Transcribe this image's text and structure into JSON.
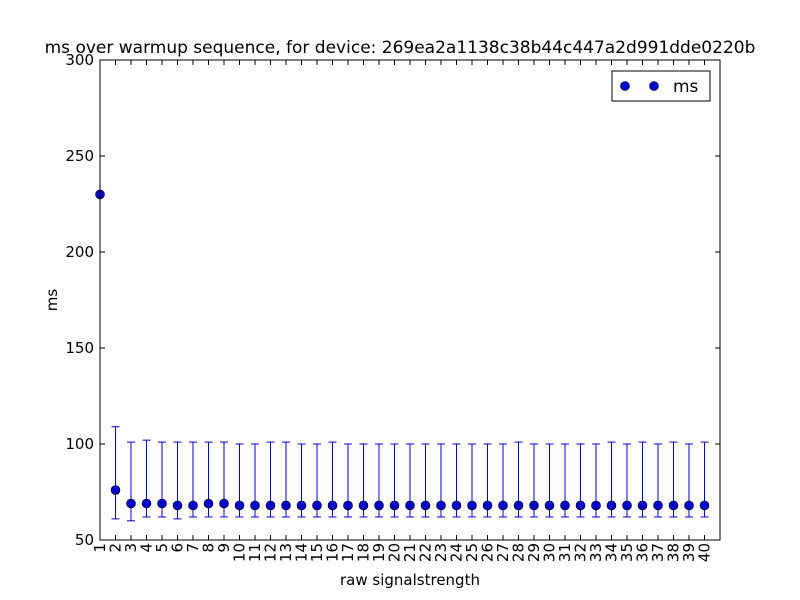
{
  "chart_data": {
    "type": "scatter",
    "title": "ms over warmup sequence, for device: 269ea2a1138c38b44c447a2d991dde0220b",
    "xlabel": "raw signalstrength",
    "ylabel": "ms",
    "ylim": [
      50,
      300
    ],
    "yticks": [
      "50",
      "100",
      "150",
      "200",
      "250",
      "300"
    ],
    "categories": [
      "1",
      "2",
      "3",
      "4",
      "5",
      "6",
      "7",
      "8",
      "9",
      "10",
      "11",
      "12",
      "13",
      "14",
      "15",
      "16",
      "17",
      "18",
      "19",
      "20",
      "21",
      "22",
      "23",
      "24",
      "25",
      "26",
      "27",
      "28",
      "29",
      "30",
      "31",
      "32",
      "33",
      "34",
      "35",
      "36",
      "37",
      "38",
      "39",
      "40"
    ],
    "legend": {
      "position": "top-right",
      "label": "ms"
    },
    "grid": false,
    "series": [
      {
        "name": "ms",
        "color": "#0000cc",
        "values": [
          230,
          76,
          69,
          69,
          69,
          68,
          68,
          69,
          69,
          68,
          68,
          68,
          68,
          68,
          68,
          68,
          68,
          68,
          68,
          68,
          68,
          68,
          68,
          68,
          68,
          68,
          68,
          68,
          68,
          68,
          68,
          68,
          68,
          68,
          68,
          68,
          68,
          68,
          68,
          68
        ],
        "err_low": [
          null,
          61,
          60,
          62,
          62,
          61,
          62,
          62,
          62,
          62,
          62,
          62,
          62,
          62,
          62,
          62,
          62,
          62,
          62,
          62,
          62,
          62,
          62,
          62,
          62,
          62,
          62,
          62,
          62,
          62,
          62,
          62,
          62,
          62,
          62,
          62,
          62,
          62,
          62,
          62
        ],
        "err_high": [
          null,
          109,
          101,
          102,
          101,
          101,
          101,
          101,
          101,
          100,
          100,
          101,
          101,
          100,
          100,
          101,
          100,
          100,
          100,
          100,
          100,
          100,
          100,
          100,
          100,
          100,
          100,
          101,
          100,
          100,
          100,
          100,
          100,
          101,
          100,
          101,
          100,
          101,
          100,
          101
        ]
      }
    ]
  }
}
